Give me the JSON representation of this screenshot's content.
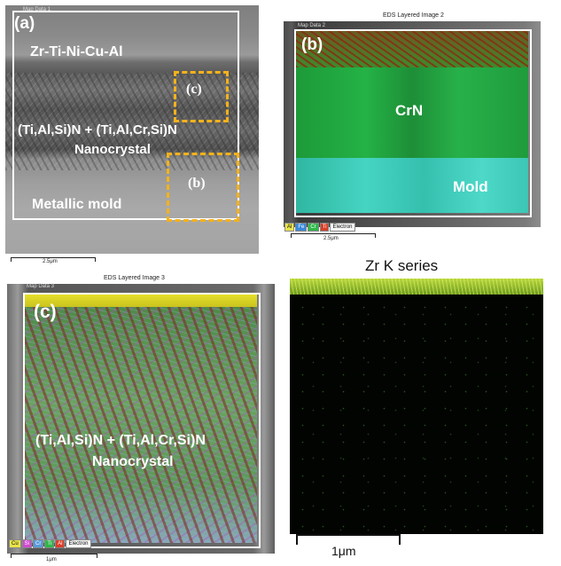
{
  "panel_a": {
    "header": "Map Data 1",
    "label": "(a)",
    "text_alloy": "Zr-Ti-Ni-Cu-Al",
    "text_coating_1": "(Ti,Al,Si)N + (Ti,Al,Cr,Si)N",
    "text_coating_2": "Nanocrystal",
    "text_mold": "Metallic mold",
    "box_c_label": "(c)",
    "box_b_label": "(b)",
    "scale": "2.5μm"
  },
  "panel_b": {
    "title": "EDS Layered Image 2",
    "header": "Map Data 2",
    "label": "(b)",
    "text_crn": "CrN",
    "text_mold": "Mold",
    "legend": [
      "Al",
      "Fe",
      "Cr",
      "Ti",
      "Electron"
    ],
    "scale": "2.5μm"
  },
  "panel_c": {
    "title": "EDS Layered Image 3",
    "header": "Map Data 3",
    "label": "(c)",
    "text_coating_1": "(Ti,Al,Si)N + (Ti,Al,Cr,Si)N",
    "text_coating_2": "Nanocrystal",
    "legend": [
      "Cu",
      "Si",
      "Cr",
      "Ti",
      "Al",
      "Electron"
    ],
    "scale": "1μm"
  },
  "panel_zr": {
    "title": "Zr K series",
    "scale": "1μm"
  },
  "colors": {
    "dashed_box": "#f6b21a",
    "crn_green": "#24b246",
    "mold_cyan": "#46d4c2",
    "zr_green": "#b8d83a"
  }
}
